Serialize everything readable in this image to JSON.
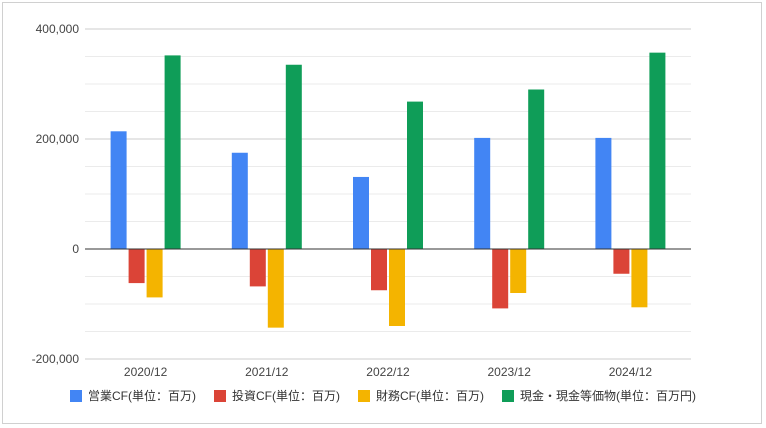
{
  "chart_data": {
    "type": "bar",
    "title": "",
    "xlabel": "",
    "ylabel": "",
    "categories": [
      "2020/12",
      "2021/12",
      "2022/12",
      "2023/12",
      "2024/12"
    ],
    "ylim": [
      -200000,
      400000
    ],
    "yticks": [
      400000,
      200000,
      0,
      -200000
    ],
    "ytick_labels": [
      "400,000",
      "200,000",
      "0",
      "-200,000"
    ],
    "grid": true,
    "legend_position": "bottom",
    "series": [
      {
        "name": "営業CF(単位：百万)",
        "color": "#4285F4",
        "values": [
          214000,
          175000,
          131000,
          202000,
          202000
        ]
      },
      {
        "name": "投資CF(単位：百万)",
        "color": "#DB4437",
        "values": [
          -62000,
          -68000,
          -75000,
          -108000,
          -45000
        ]
      },
      {
        "name": "財務CF(単位：百万)",
        "color": "#F4B400",
        "values": [
          -88000,
          -143000,
          -140000,
          -80000,
          -106000
        ]
      },
      {
        "name": "現金・現金等価物(単位：百万円)",
        "color": "#0F9D58",
        "values": [
          352000,
          335000,
          268000,
          290000,
          357000
        ]
      }
    ]
  }
}
